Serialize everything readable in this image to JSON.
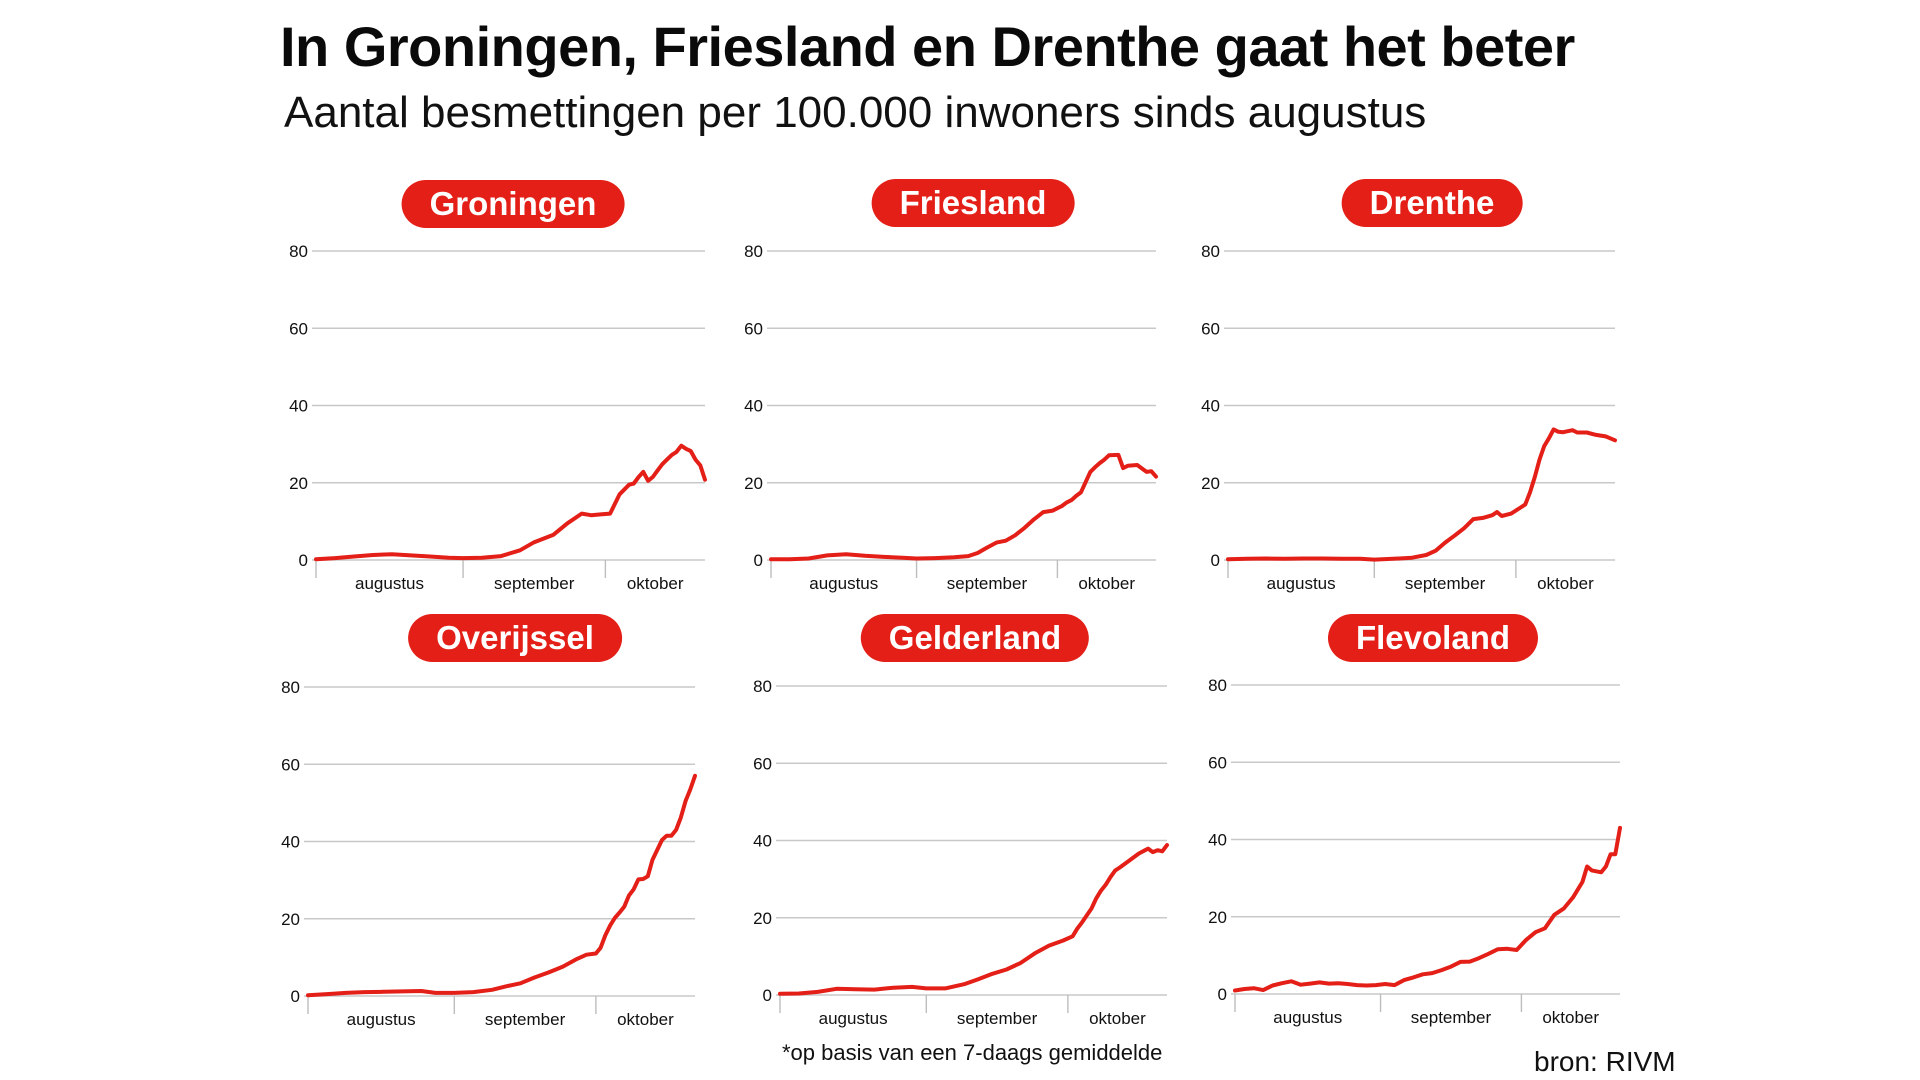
{
  "header": {
    "title": "In Groningen, Friesland en Drenthe gaat het beter",
    "subtitle": "Aantal besmettingen per 100.000 inwoners sinds augustus"
  },
  "footer": {
    "footnote": "*op basis van een 7-daags gemiddelde",
    "source": "bron: RIVM"
  },
  "colors": {
    "accent": "#e31f17",
    "grid": "#c8c8c8",
    "text": "#111111"
  },
  "chart_data": [
    {
      "type": "line",
      "title": "Groningen",
      "xlabel": "",
      "ylabel": "",
      "ylim": [
        0,
        80
      ],
      "yticks": [
        0,
        20,
        40,
        60,
        80
      ],
      "months": [
        "augustus",
        "september",
        "oktober"
      ],
      "x_domain_days": [
        0,
        82
      ],
      "month_boundaries_days": [
        0,
        31,
        61
      ],
      "grid": true,
      "series": [
        {
          "name": "Groningen",
          "color": "#e31f17",
          "x": [
            0,
            4,
            8,
            12,
            16,
            20,
            24,
            28,
            31,
            35,
            39,
            43,
            46,
            50,
            53,
            56,
            58,
            60,
            61,
            62,
            64,
            66,
            67,
            68,
            69,
            70,
            71,
            72,
            73,
            74,
            75,
            76,
            77,
            78,
            79,
            80,
            81,
            82
          ],
          "values": [
            0.2,
            0.5,
            0.9,
            1.3,
            1.5,
            1.2,
            0.9,
            0.6,
            0.5,
            0.6,
            1.0,
            2.5,
            4.6,
            6.5,
            9.5,
            12.0,
            11.6,
            11.8,
            11.9,
            12.0,
            17.0,
            19.5,
            19.8,
            21.5,
            22.8,
            20.5,
            21.5,
            23.2,
            24.8,
            26.0,
            27.2,
            28.0,
            29.6,
            28.8,
            28.2,
            26.0,
            24.5,
            20.8
          ]
        }
      ]
    },
    {
      "type": "line",
      "title": "Friesland",
      "xlabel": "",
      "ylabel": "",
      "ylim": [
        0,
        80
      ],
      "yticks": [
        0,
        20,
        40,
        60,
        80
      ],
      "months": [
        "augustus",
        "september",
        "oktober"
      ],
      "x_domain_days": [
        0,
        82
      ],
      "month_boundaries_days": [
        0,
        31,
        61
      ],
      "grid": true,
      "series": [
        {
          "name": "Friesland",
          "color": "#e31f17",
          "x": [
            0,
            4,
            8,
            12,
            16,
            20,
            24,
            28,
            31,
            35,
            39,
            42,
            44,
            46,
            48,
            50,
            52,
            54,
            56,
            58,
            60,
            62,
            63,
            64,
            65,
            66,
            68,
            69,
            70,
            71,
            72,
            74,
            75,
            76,
            78,
            80,
            81,
            82
          ],
          "values": [
            0.2,
            0.2,
            0.4,
            1.2,
            1.5,
            1.1,
            0.8,
            0.6,
            0.4,
            0.5,
            0.7,
            1.0,
            1.8,
            3.2,
            4.5,
            5.0,
            6.4,
            8.3,
            10.5,
            12.4,
            12.8,
            14.0,
            14.9,
            15.5,
            16.6,
            17.5,
            22.8,
            24.0,
            25.1,
            26.0,
            27.1,
            27.2,
            23.8,
            24.4,
            24.6,
            22.8,
            23.0,
            21.6
          ]
        }
      ]
    },
    {
      "type": "line",
      "title": "Drenthe",
      "xlabel": "",
      "ylabel": "",
      "ylim": [
        0,
        80
      ],
      "yticks": [
        0,
        20,
        40,
        60,
        80
      ],
      "months": [
        "augustus",
        "september",
        "oktober"
      ],
      "x_domain_days": [
        0,
        82
      ],
      "month_boundaries_days": [
        0,
        31,
        61
      ],
      "grid": true,
      "series": [
        {
          "name": "Drenthe",
          "color": "#e31f17",
          "x": [
            0,
            4,
            8,
            12,
            16,
            20,
            24,
            28,
            31,
            35,
            39,
            42,
            44,
            46,
            48,
            50,
            52,
            54,
            56,
            57,
            58,
            60,
            62,
            63,
            64,
            65,
            66,
            67,
            68,
            69,
            70,
            71,
            73,
            74,
            76,
            78,
            80,
            81,
            82
          ],
          "values": [
            0.2,
            0.3,
            0.4,
            0.3,
            0.4,
            0.4,
            0.3,
            0.3,
            0.1,
            0.3,
            0.6,
            1.3,
            2.4,
            4.5,
            6.3,
            8.2,
            10.6,
            10.9,
            11.6,
            12.4,
            11.4,
            12.0,
            13.6,
            14.4,
            17.5,
            21.5,
            26.0,
            29.5,
            31.5,
            33.8,
            33.2,
            33.1,
            33.6,
            33.0,
            33.0,
            32.4,
            32.0,
            31.5,
            31.0
          ]
        }
      ]
    },
    {
      "type": "line",
      "title": "Overijssel",
      "xlabel": "",
      "ylabel": "",
      "ylim": [
        0,
        80
      ],
      "yticks": [
        0,
        20,
        40,
        60,
        80
      ],
      "months": [
        "augustus",
        "september",
        "oktober"
      ],
      "x_domain_days": [
        0,
        82
      ],
      "month_boundaries_days": [
        0,
        31,
        61
      ],
      "grid": true,
      "series": [
        {
          "name": "Overijssel",
          "color": "#e31f17",
          "x": [
            0,
            4,
            8,
            12,
            16,
            20,
            24,
            27,
            31,
            35,
            39,
            42,
            45,
            48,
            51,
            54,
            57,
            59,
            61,
            62,
            63,
            64,
            65,
            66,
            67,
            68,
            69,
            70,
            71,
            72,
            73,
            74,
            75,
            76,
            77,
            78,
            79,
            80,
            81,
            82
          ],
          "values": [
            0.2,
            0.5,
            0.8,
            1.0,
            1.1,
            1.2,
            1.3,
            0.8,
            0.8,
            1.0,
            1.6,
            2.5,
            3.3,
            4.8,
            6.1,
            7.6,
            9.6,
            10.7,
            11.0,
            12.5,
            15.7,
            18.2,
            20.2,
            21.6,
            23.1,
            26.0,
            27.6,
            30.2,
            30.3,
            31.0,
            35.3,
            37.8,
            40.4,
            41.5,
            41.5,
            43.0,
            46.2,
            50.5,
            53.5,
            57.0
          ]
        }
      ]
    },
    {
      "type": "line",
      "title": "Gelderland",
      "xlabel": "",
      "ylabel": "",
      "ylim": [
        0,
        80
      ],
      "yticks": [
        0,
        20,
        40,
        60,
        80
      ],
      "months": [
        "augustus",
        "september",
        "oktober"
      ],
      "x_domain_days": [
        0,
        82
      ],
      "month_boundaries_days": [
        0,
        31,
        61
      ],
      "grid": true,
      "series": [
        {
          "name": "Gelderland",
          "color": "#e31f17",
          "x": [
            0,
            4,
            8,
            12,
            16,
            20,
            24,
            28,
            31,
            35,
            39,
            42,
            45,
            48,
            51,
            54,
            57,
            60,
            62,
            63,
            64,
            66,
            67,
            68,
            69,
            70,
            71,
            72,
            74,
            76,
            78,
            79,
            80,
            81,
            82
          ],
          "values": [
            0.3,
            0.4,
            0.8,
            1.6,
            1.5,
            1.4,
            1.9,
            2.1,
            1.7,
            1.7,
            2.8,
            4.1,
            5.5,
            6.6,
            8.3,
            10.8,
            12.8,
            14.1,
            15.2,
            17.2,
            18.8,
            22.4,
            25.0,
            27.0,
            28.5,
            30.5,
            32.2,
            33.0,
            34.8,
            36.6,
            37.9,
            37.0,
            37.5,
            37.2,
            38.8
          ]
        }
      ]
    },
    {
      "type": "line",
      "title": "Flevoland",
      "xlabel": "",
      "ylabel": "",
      "ylim": [
        0,
        80
      ],
      "yticks": [
        0,
        20,
        40,
        60,
        80
      ],
      "months": [
        "augustus",
        "september",
        "oktober"
      ],
      "x_domain_days": [
        0,
        82
      ],
      "month_boundaries_days": [
        0,
        31,
        61
      ],
      "grid": true,
      "series": [
        {
          "name": "Flevoland",
          "color": "#e31f17",
          "x": [
            0,
            2,
            4,
            6,
            8,
            10,
            12,
            14,
            16,
            18,
            20,
            22,
            24,
            26,
            28,
            30,
            32,
            34,
            36,
            38,
            40,
            42,
            44,
            46,
            48,
            50,
            52,
            54,
            56,
            58,
            60,
            62,
            64,
            66,
            68,
            70,
            72,
            74,
            75,
            76,
            78,
            79,
            80,
            81,
            82
          ],
          "values": [
            0.9,
            1.3,
            1.5,
            1.0,
            2.2,
            2.8,
            3.3,
            2.4,
            2.7,
            3.0,
            2.7,
            2.8,
            2.6,
            2.3,
            2.2,
            2.3,
            2.6,
            2.3,
            3.6,
            4.3,
            5.1,
            5.4,
            6.2,
            7.1,
            8.3,
            8.4,
            9.3,
            10.4,
            11.6,
            11.7,
            11.4,
            14.0,
            16.0,
            17.0,
            20.5,
            22.1,
            25.0,
            29.0,
            33.0,
            32.0,
            31.5,
            33.0,
            36.2,
            36.2,
            43.0
          ]
        }
      ]
    }
  ]
}
